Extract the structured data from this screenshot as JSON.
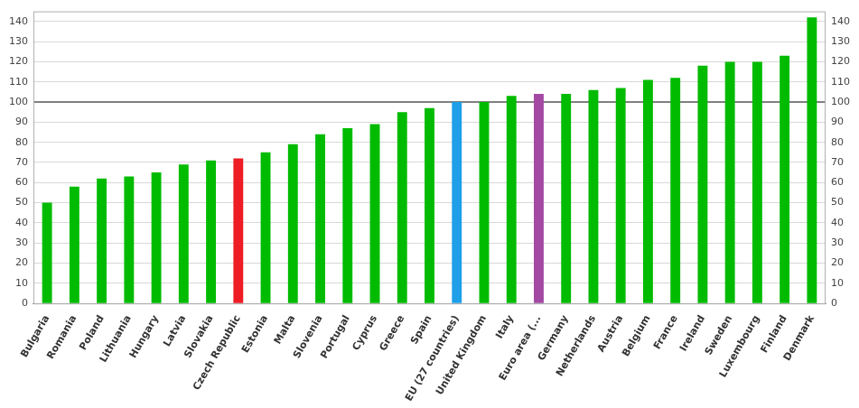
{
  "chart_data": {
    "type": "bar",
    "categories": [
      "Bulgaria",
      "Romania",
      "Poland",
      "Lithuania",
      "Hungary",
      "Latvia",
      "Slovakia",
      "Czech Republic",
      "Estonia",
      "Malta",
      "Slovenia",
      "Portugal",
      "Cyprus",
      "Greece",
      "Spain",
      "EU (27 countries)",
      "United Kingdom",
      "Italy",
      "Euro area (...",
      "Germany",
      "Netherlands",
      "Austria",
      "Belgium",
      "France",
      "Ireland",
      "Sweden",
      "Luxembourg",
      "Finland",
      "Denmark"
    ],
    "values": [
      50,
      58,
      62,
      63,
      65,
      69,
      71,
      72,
      75,
      79,
      84,
      87,
      89,
      95,
      97,
      100,
      100,
      103,
      104,
      104,
      106,
      107,
      111,
      112,
      118,
      120,
      120,
      123,
      142
    ],
    "colors": [
      "#00bb00",
      "#00bb00",
      "#00bb00",
      "#00bb00",
      "#00bb00",
      "#00bb00",
      "#00bb00",
      "#ee1c25",
      "#00bb00",
      "#00bb00",
      "#00bb00",
      "#00bb00",
      "#00bb00",
      "#00bb00",
      "#00bb00",
      "#1e9fe8",
      "#00bb00",
      "#00bb00",
      "#a349a4",
      "#00bb00",
      "#00bb00",
      "#00bb00",
      "#00bb00",
      "#00bb00",
      "#00bb00",
      "#00bb00",
      "#00bb00",
      "#00bb00",
      "#00bb00"
    ],
    "ylim": [
      0,
      145
    ],
    "yticks": [
      0,
      10,
      20,
      30,
      40,
      50,
      60,
      70,
      80,
      90,
      100,
      110,
      120,
      130,
      140
    ],
    "y2lim": [
      0,
      145
    ],
    "y2ticks": [
      0,
      10,
      20,
      30,
      40,
      50,
      60,
      70,
      80,
      90,
      100,
      110,
      120,
      130,
      140
    ],
    "reference_line": 100,
    "grid": true
  }
}
